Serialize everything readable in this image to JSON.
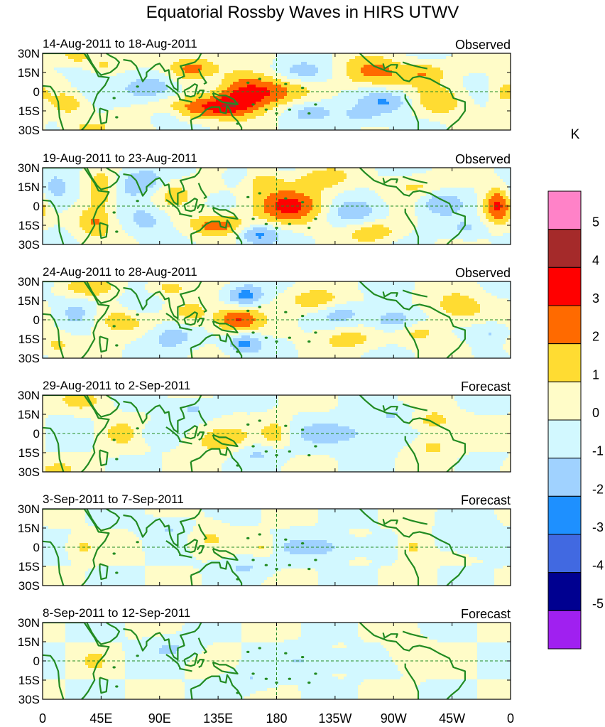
{
  "chart_data": {
    "type": "heatmap",
    "title": "Equatorial Rossby Waves in HIRS UTWV",
    "colorbar": {
      "unit": "K",
      "levels": [
        -5,
        -4,
        -3,
        -2,
        -1,
        0,
        1,
        2,
        3,
        4,
        5
      ],
      "colors": [
        "#a020f0",
        "#000090",
        "#4169e1",
        "#1e90ff",
        "#a0d2ff",
        "#d2f8ff",
        "#fffcc8",
        "#ffdc32",
        "#ff6a00",
        "#ff0000",
        "#a52a2a",
        "#ff82c8"
      ]
    },
    "y_ticks": [
      {
        "label": "30N",
        "lat": 30
      },
      {
        "label": "15N",
        "lat": 15
      },
      {
        "label": "0",
        "lat": 0
      },
      {
        "label": "15S",
        "lat": -15
      },
      {
        "label": "30S",
        "lat": -30
      }
    ],
    "x_ticks": [
      {
        "label": "0",
        "lon": 0
      },
      {
        "label": "45E",
        "lon": 45
      },
      {
        "label": "90E",
        "lon": 90
      },
      {
        "label": "135E",
        "lon": 135
      },
      {
        "label": "180",
        "lon": 180
      },
      {
        "label": "135W",
        "lon": 225
      },
      {
        "label": "90W",
        "lon": 270
      },
      {
        "label": "45W",
        "lon": 315
      },
      {
        "label": "0",
        "lon": 360
      }
    ],
    "xlim": [
      0,
      360
    ],
    "ylim": [
      -30,
      30
    ],
    "reference_lines": {
      "equator_lat": 0,
      "dateline_lon": 180
    },
    "panels": [
      {
        "period": "14-Aug-2011 to 18-Aug-2011",
        "kind": "Observed",
        "anomalies": [
          {
            "lon": 160,
            "lat": 0,
            "amp": 3.8,
            "wlon": 24,
            "wlat": 10
          },
          {
            "lon": 100,
            "lat": -15,
            "amp": 2.6,
            "wlon": 18,
            "wlat": 7
          },
          {
            "lon": 255,
            "lat": 15,
            "amp": 2.4,
            "wlon": 20,
            "wlat": 8
          },
          {
            "lon": 115,
            "lat": 18,
            "amp": 2.6,
            "wlon": 14,
            "wlat": 7
          },
          {
            "lon": 140,
            "lat": -12,
            "amp": 2.7,
            "wlon": 16,
            "wlat": 6
          },
          {
            "lon": 25,
            "lat": 28,
            "amp": 1.8,
            "wlon": 10,
            "wlat": 5
          },
          {
            "lon": 20,
            "lat": -10,
            "amp": 1.5,
            "wlon": 10,
            "wlat": 7
          },
          {
            "lon": 35,
            "lat": -28,
            "amp": 1.7,
            "wlon": 12,
            "wlat": 4
          },
          {
            "lon": 45,
            "lat": 20,
            "amp": 1.2,
            "wlon": 10,
            "wlat": 5
          },
          {
            "lon": 305,
            "lat": -8,
            "amp": 1.8,
            "wlon": 14,
            "wlat": 8
          },
          {
            "lon": 295,
            "lat": 15,
            "amp": 1.6,
            "wlon": 12,
            "wlat": 6
          },
          {
            "lon": 355,
            "lat": 0,
            "amp": 1.4,
            "wlon": 8,
            "wlat": 8
          },
          {
            "lon": 90,
            "lat": 3,
            "amp": -1.6,
            "wlon": 18,
            "wlat": 8
          },
          {
            "lon": 95,
            "lat": -18,
            "amp": -2.4,
            "wlon": 12,
            "wlat": 6
          },
          {
            "lon": 200,
            "lat": 15,
            "amp": -1.7,
            "wlon": 18,
            "wlat": 6
          },
          {
            "lon": 205,
            "lat": -15,
            "amp": -1.5,
            "wlon": 16,
            "wlat": 6
          },
          {
            "lon": 265,
            "lat": -8,
            "amp": -2.0,
            "wlon": 14,
            "wlat": 6
          },
          {
            "lon": 130,
            "lat": 5,
            "amp": -1.4,
            "wlon": 10,
            "wlat": 8
          },
          {
            "lon": 35,
            "lat": 5,
            "amp": -1.2,
            "wlon": 10,
            "wlat": 10
          },
          {
            "lon": 245,
            "lat": -20,
            "amp": -1.3,
            "wlon": 12,
            "wlat": 6
          }
        ]
      },
      {
        "period": "19-Aug-2011 to 23-Aug-2011",
        "kind": "Observed",
        "anomalies": [
          {
            "lon": 190,
            "lat": 0,
            "amp": 3.1,
            "wlon": 20,
            "wlat": 10
          },
          {
            "lon": 350,
            "lat": 0,
            "amp": 3.2,
            "wlon": 8,
            "wlat": 10
          },
          {
            "lon": 135,
            "lat": -15,
            "amp": 2.6,
            "wlon": 16,
            "wlat": 6
          },
          {
            "lon": 45,
            "lat": 12,
            "amp": 2.0,
            "wlon": 8,
            "wlat": 10
          },
          {
            "lon": 40,
            "lat": -12,
            "amp": 2.1,
            "wlon": 10,
            "wlat": 8
          },
          {
            "lon": 160,
            "lat": 20,
            "amp": 1.8,
            "wlon": 18,
            "wlat": 6
          },
          {
            "lon": 255,
            "lat": -20,
            "amp": 1.9,
            "wlon": 14,
            "wlat": 6
          },
          {
            "lon": 215,
            "lat": 22,
            "amp": 1.5,
            "wlon": 14,
            "wlat": 6
          },
          {
            "lon": 100,
            "lat": 10,
            "amp": 1.4,
            "wlon": 12,
            "wlat": 8
          },
          {
            "lon": 290,
            "lat": 15,
            "amp": 1.3,
            "wlon": 16,
            "wlat": 6
          },
          {
            "lon": 75,
            "lat": 18,
            "amp": -1.9,
            "wlon": 14,
            "wlat": 8
          },
          {
            "lon": 150,
            "lat": 22,
            "amp": -2.2,
            "wlon": 10,
            "wlat": 6
          },
          {
            "lon": 165,
            "lat": -22,
            "amp": -2.4,
            "wlon": 12,
            "wlat": 6
          },
          {
            "lon": 240,
            "lat": -5,
            "amp": -1.5,
            "wlon": 16,
            "wlat": 8
          },
          {
            "lon": 305,
            "lat": 3,
            "amp": -1.7,
            "wlon": 12,
            "wlat": 8
          },
          {
            "lon": 10,
            "lat": 10,
            "amp": -1.5,
            "wlon": 10,
            "wlat": 10
          },
          {
            "lon": 80,
            "lat": -10,
            "amp": -1.4,
            "wlon": 12,
            "wlat": 8
          },
          {
            "lon": 325,
            "lat": -18,
            "amp": -1.2,
            "wlon": 12,
            "wlat": 6
          }
        ]
      },
      {
        "period": "24-Aug-2011 to 28-Aug-2011",
        "kind": "Observed",
        "anomalies": [
          {
            "lon": 150,
            "lat": 0,
            "amp": 3.1,
            "wlon": 12,
            "wlat": 8
          },
          {
            "lon": 60,
            "lat": 0,
            "amp": 1.9,
            "wlon": 16,
            "wlat": 8
          },
          {
            "lon": 35,
            "lat": 25,
            "amp": 1.6,
            "wlon": 14,
            "wlat": 5
          },
          {
            "lon": 95,
            "lat": 25,
            "amp": 1.5,
            "wlon": 12,
            "wlat": 5
          },
          {
            "lon": 115,
            "lat": 5,
            "amp": 1.6,
            "wlon": 12,
            "wlat": 8
          },
          {
            "lon": 210,
            "lat": 15,
            "amp": 1.7,
            "wlon": 16,
            "wlat": 6
          },
          {
            "lon": 235,
            "lat": -15,
            "amp": 1.5,
            "wlon": 16,
            "wlat": 6
          },
          {
            "lon": 320,
            "lat": 10,
            "amp": 1.9,
            "wlon": 14,
            "wlat": 8
          },
          {
            "lon": 290,
            "lat": -10,
            "amp": 1.4,
            "wlon": 12,
            "wlat": 6
          },
          {
            "lon": 10,
            "lat": -20,
            "amp": 1.3,
            "wlon": 10,
            "wlat": 6
          },
          {
            "lon": 155,
            "lat": 18,
            "amp": -2.6,
            "wlon": 10,
            "wlat": 6
          },
          {
            "lon": 155,
            "lat": -18,
            "amp": -2.4,
            "wlon": 10,
            "wlat": 6
          },
          {
            "lon": 270,
            "lat": 0,
            "amp": -2.1,
            "wlon": 12,
            "wlat": 6
          },
          {
            "lon": 100,
            "lat": -12,
            "amp": -1.6,
            "wlon": 14,
            "wlat": 8
          },
          {
            "lon": 75,
            "lat": 10,
            "amp": -1.4,
            "wlon": 12,
            "wlat": 8
          },
          {
            "lon": 230,
            "lat": 5,
            "amp": -1.3,
            "wlon": 12,
            "wlat": 6
          },
          {
            "lon": 345,
            "lat": -10,
            "amp": -1.2,
            "wlon": 10,
            "wlat": 6
          },
          {
            "lon": 25,
            "lat": 5,
            "amp": -1.3,
            "wlon": 10,
            "wlat": 8
          }
        ]
      },
      {
        "period": "29-Aug-2011 to 2-Sep-2011",
        "kind": "Forecast",
        "anomalies": [
          {
            "lon": 135,
            "lat": -5,
            "amp": 1.8,
            "wlon": 16,
            "wlat": 8
          },
          {
            "lon": 180,
            "lat": 0,
            "amp": 1.6,
            "wlon": 8,
            "wlat": 8
          },
          {
            "lon": 300,
            "lat": 10,
            "amp": 1.6,
            "wlon": 12,
            "wlat": 6
          },
          {
            "lon": 300,
            "lat": -10,
            "amp": 1.4,
            "wlon": 10,
            "wlat": 6
          },
          {
            "lon": 30,
            "lat": 25,
            "amp": 1.3,
            "wlon": 12,
            "wlat": 5
          },
          {
            "lon": 10,
            "lat": -28,
            "amp": 1.3,
            "wlon": 10,
            "wlat": 4
          },
          {
            "lon": 60,
            "lat": 0,
            "amp": 1.2,
            "wlon": 12,
            "wlat": 8
          },
          {
            "lon": 230,
            "lat": 0,
            "amp": -1.6,
            "wlon": 24,
            "wlat": 7
          },
          {
            "lon": 115,
            "lat": 20,
            "amp": -1.3,
            "wlon": 12,
            "wlat": 6
          },
          {
            "lon": 165,
            "lat": -15,
            "amp": -1.2,
            "wlon": 14,
            "wlat": 6
          },
          {
            "lon": 85,
            "lat": 0,
            "amp": -1.1,
            "wlon": 10,
            "wlat": 6
          },
          {
            "lon": 270,
            "lat": 15,
            "amp": -1.1,
            "wlon": 12,
            "wlat": 5
          }
        ]
      },
      {
        "period": "3-Sep-2011 to 7-Sep-2011",
        "kind": "Forecast",
        "anomalies": [
          {
            "lon": 285,
            "lat": 0,
            "amp": 1.6,
            "wlon": 8,
            "wlat": 8
          },
          {
            "lon": 170,
            "lat": 0,
            "amp": 1.3,
            "wlon": 6,
            "wlat": 6
          },
          {
            "lon": 30,
            "lat": 0,
            "amp": 1.2,
            "wlon": 8,
            "wlat": 6
          },
          {
            "lon": 125,
            "lat": 8,
            "amp": 1.1,
            "wlon": 12,
            "wlat": 8
          },
          {
            "lon": 215,
            "lat": 0,
            "amp": -1.5,
            "wlon": 22,
            "wlat": 6
          },
          {
            "lon": 100,
            "lat": 15,
            "amp": -1.1,
            "wlon": 14,
            "wlat": 6
          },
          {
            "lon": 155,
            "lat": -15,
            "amp": -1.1,
            "wlon": 14,
            "wlat": 6
          },
          {
            "lon": 330,
            "lat": 5,
            "amp": -1.0,
            "wlon": 14,
            "wlat": 8
          }
        ]
      },
      {
        "period": "8-Sep-2011 to 12-Sep-2011",
        "kind": "Forecast",
        "anomalies": [
          {
            "lon": 40,
            "lat": 0,
            "amp": 1.3,
            "wlon": 6,
            "wlat": 5
          },
          {
            "lon": 280,
            "lat": 5,
            "amp": 1.0,
            "wlon": 10,
            "wlat": 8
          },
          {
            "lon": 210,
            "lat": 0,
            "amp": -1.2,
            "wlon": 20,
            "wlat": 6
          },
          {
            "lon": 100,
            "lat": 10,
            "amp": -1.0,
            "wlon": 14,
            "wlat": 6
          },
          {
            "lon": 160,
            "lat": -15,
            "amp": -1.0,
            "wlon": 14,
            "wlat": 6
          }
        ]
      }
    ]
  },
  "colors": {
    "coastline": "#228b22",
    "reference_line": "#228b22",
    "frame": "#000000"
  }
}
